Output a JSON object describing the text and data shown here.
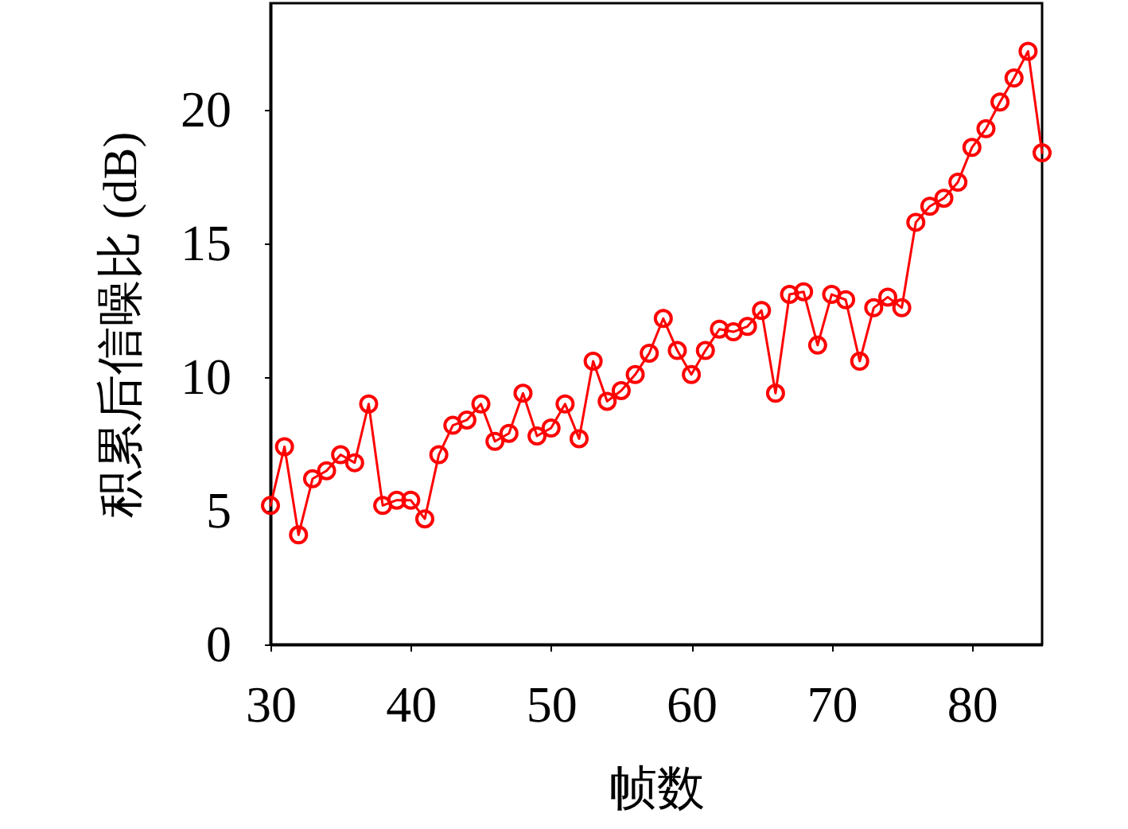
{
  "chart_data": {
    "type": "line",
    "xlabel": "帧数",
    "ylabel": "积累后信噪比 (dB)",
    "x": [
      30,
      31,
      32,
      33,
      34,
      35,
      36,
      37,
      38,
      39,
      40,
      41,
      42,
      43,
      44,
      45,
      46,
      47,
      48,
      49,
      50,
      51,
      52,
      53,
      54,
      55,
      56,
      57,
      58,
      59,
      60,
      61,
      62,
      63,
      64,
      65,
      66,
      67,
      68,
      69,
      70,
      71,
      72,
      73,
      74,
      75,
      76,
      77,
      78,
      79,
      80,
      81,
      82,
      83,
      84,
      85
    ],
    "values": [
      5.2,
      7.4,
      4.1,
      6.2,
      6.5,
      7.1,
      6.8,
      9.0,
      5.2,
      5.4,
      5.4,
      4.7,
      7.1,
      8.2,
      8.4,
      9.0,
      7.6,
      7.9,
      9.4,
      7.8,
      8.1,
      9.0,
      7.7,
      10.6,
      9.1,
      9.5,
      10.1,
      10.9,
      12.2,
      11.0,
      10.1,
      11.0,
      11.8,
      11.7,
      11.9,
      12.5,
      9.4,
      13.1,
      13.2,
      11.2,
      13.1,
      12.9,
      10.6,
      12.6,
      13.0,
      12.6,
      15.8,
      16.4,
      16.7,
      17.3,
      18.6,
      19.3,
      20.3,
      21.2,
      22.2,
      18.4
    ],
    "color": "#ff0000",
    "marker": "circle",
    "line_style": "solid",
    "grid": false,
    "xlim": [
      30,
      85
    ],
    "ylim": [
      0,
      24
    ],
    "xticks": [
      30,
      40,
      50,
      60,
      70,
      80
    ],
    "yticks": [
      0,
      5,
      10,
      15,
      20
    ]
  }
}
